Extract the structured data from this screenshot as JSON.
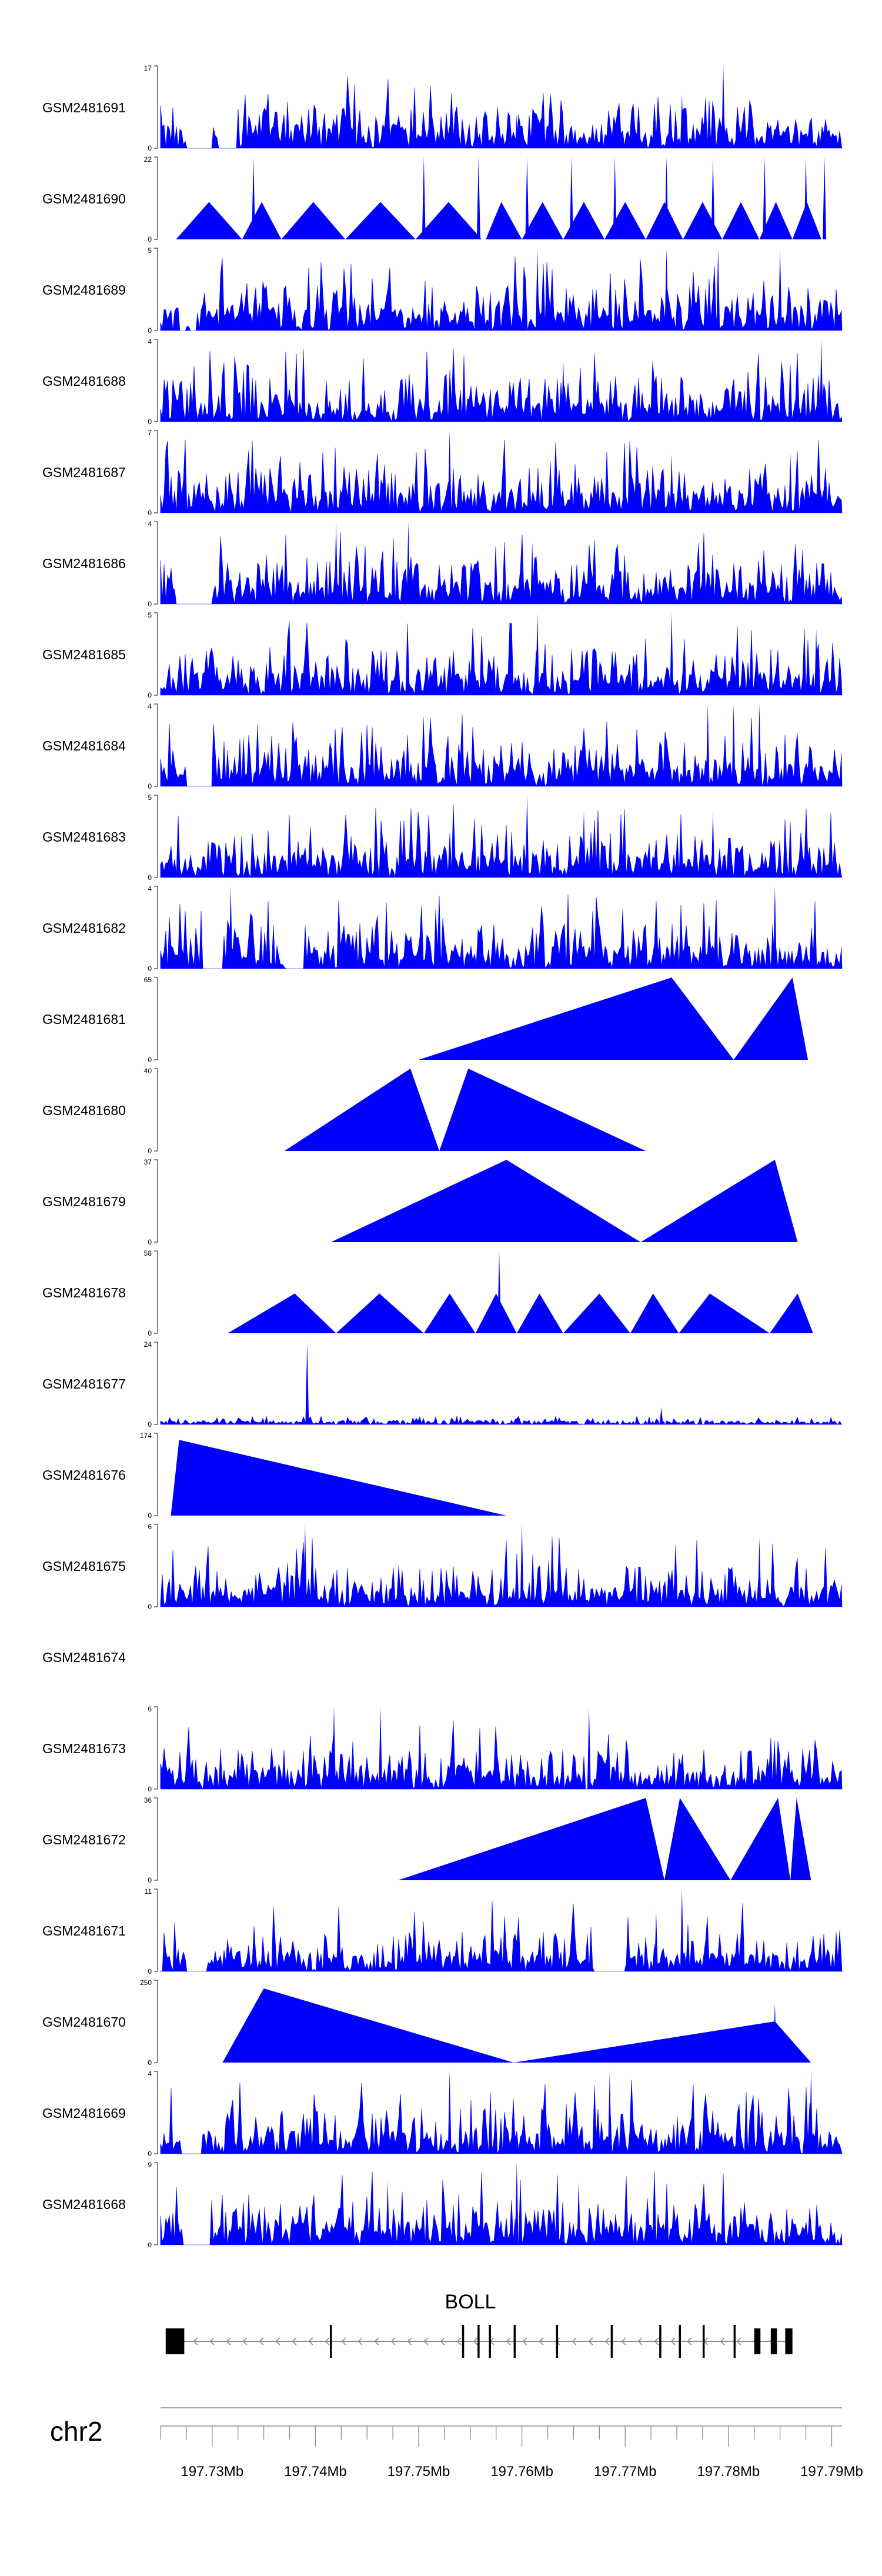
{
  "chart_data": {
    "type": "area",
    "title": "",
    "genome": "chr2",
    "xlim": [
      197.725,
      197.791
    ],
    "x_ticks": [
      {
        "value": 197.73,
        "label": "197.73Mb"
      },
      {
        "value": 197.74,
        "label": "197.74Mb"
      },
      {
        "value": 197.75,
        "label": "197.75Mb"
      },
      {
        "value": 197.76,
        "label": "197.76Mb"
      },
      {
        "value": 197.77,
        "label": "197.77Mb"
      },
      {
        "value": 197.78,
        "label": "197.78Mb"
      },
      {
        "value": 197.79,
        "label": "197.79Mb"
      }
    ],
    "gene": {
      "name": "BOLL",
      "start": 197.7255,
      "end": 197.7855,
      "exons": [
        [
          197.7255,
          197.7272
        ],
        [
          197.7268,
          197.7273
        ],
        [
          197.7414,
          197.7416
        ],
        [
          197.7542,
          197.7544
        ],
        [
          197.7557,
          197.7559
        ],
        [
          197.7568,
          197.757
        ],
        [
          197.7592,
          197.7594
        ],
        [
          197.7633,
          197.7635
        ],
        [
          197.7686,
          197.7688
        ],
        [
          197.7733,
          197.7735
        ],
        [
          197.7752,
          197.7754
        ],
        [
          197.7775,
          197.7777
        ],
        [
          197.7805,
          197.7807
        ],
        [
          197.7825,
          197.7831
        ],
        [
          197.7841,
          197.7847
        ],
        [
          197.7855,
          197.7862
        ]
      ]
    },
    "series": [
      {
        "name": "GSM2481691",
        "ymax": 17,
        "profile": "dense",
        "seed": 91,
        "gaps": [
          [
            197.7275,
            197.73
          ],
          [
            197.7305,
            197.7325
          ]
        ],
        "peaks": [
          [
            197.7795,
            17
          ],
          [
            197.7755,
            11
          ],
          [
            197.7595,
            7
          ]
        ]
      },
      {
        "name": "GSM2481690",
        "ymax": 22,
        "profile": "tri",
        "seed": 90,
        "gaps": [],
        "tri": [
          [
            197.7265,
            197.7297,
            197.7329,
            10
          ],
          [
            197.7329,
            197.7348,
            197.7367,
            10
          ],
          [
            197.7367,
            197.7398,
            197.7429,
            10
          ],
          [
            197.7429,
            197.7463,
            197.7497,
            10
          ],
          [
            197.7497,
            197.7529,
            197.7561,
            10
          ],
          [
            197.7565,
            197.758,
            197.76,
            10
          ],
          [
            197.76,
            197.762,
            197.764,
            10
          ],
          [
            197.764,
            197.766,
            197.768,
            10
          ],
          [
            197.768,
            197.77,
            197.772,
            10
          ],
          [
            197.772,
            197.7738,
            197.7756,
            10
          ],
          [
            197.7756,
            197.7775,
            197.7794,
            10
          ],
          [
            197.7794,
            197.7812,
            197.783,
            10
          ],
          [
            197.783,
            197.7846,
            197.7862,
            10
          ],
          [
            197.7862,
            197.7876,
            197.789,
            10
          ]
        ],
        "spikes": [
          [
            197.734,
            22
          ],
          [
            197.7505,
            22
          ],
          [
            197.7558,
            22
          ],
          [
            197.7605,
            22
          ],
          [
            197.7648,
            22
          ],
          [
            197.769,
            22
          ],
          [
            197.774,
            22
          ],
          [
            197.7785,
            22
          ],
          [
            197.7835,
            22
          ],
          [
            197.7875,
            22
          ],
          [
            197.7893,
            22
          ]
        ]
      },
      {
        "name": "GSM2481689",
        "ymax": 5,
        "profile": "dense",
        "seed": 89,
        "gaps": [
          [
            197.7268,
            197.7275
          ],
          [
            197.7278,
            197.7285
          ]
        ],
        "peaks": [
          [
            197.7615,
            5
          ],
          [
            197.774,
            5
          ],
          [
            197.779,
            5
          ],
          [
            197.785,
            5
          ]
        ]
      },
      {
        "name": "GSM2481688",
        "ymax": 4,
        "profile": "dense",
        "seed": 88,
        "gaps": [],
        "peaks": [
          [
            197.789,
            4
          ],
          [
            197.764,
            3
          ]
        ]
      },
      {
        "name": "GSM2481687",
        "ymax": 7,
        "profile": "dense",
        "seed": 87,
        "gaps": [],
        "peaks": [
          [
            197.753,
            7
          ],
          [
            197.7745,
            5
          ],
          [
            197.786,
            5
          ]
        ]
      },
      {
        "name": "GSM2481686",
        "ymax": 4,
        "profile": "dense",
        "seed": 86,
        "gaps": [
          [
            197.7265,
            197.73
          ]
        ],
        "peaks": [
          [
            197.742,
            4
          ],
          [
            197.749,
            4
          ],
          [
            197.761,
            3
          ]
        ]
      },
      {
        "name": "GSM2481685",
        "ymax": 5,
        "profile": "dense",
        "seed": 85,
        "gaps": [],
        "peaks": [
          [
            197.7615,
            5
          ],
          [
            197.7745,
            5
          ],
          [
            197.7885,
            4
          ]
        ]
      },
      {
        "name": "GSM2481684",
        "ymax": 4,
        "profile": "dense",
        "seed": 84,
        "gaps": [
          [
            197.7275,
            197.73
          ]
        ],
        "peaks": [
          [
            197.778,
            4
          ],
          [
            197.7805,
            4
          ],
          [
            197.783,
            4
          ]
        ]
      },
      {
        "name": "GSM2481683",
        "ymax": 5,
        "profile": "dense",
        "seed": 83,
        "gaps": [],
        "peaks": [
          [
            197.7605,
            5
          ],
          [
            197.766,
            4
          ],
          [
            197.7785,
            4
          ]
        ]
      },
      {
        "name": "GSM2481682",
        "ymax": 4,
        "profile": "dense",
        "seed": 82,
        "gaps": [
          [
            197.729,
            197.731
          ],
          [
            197.737,
            197.739
          ]
        ],
        "peaks": [
          [
            197.7845,
            4
          ],
          [
            197.7318,
            4
          ]
        ]
      },
      {
        "name": "GSM2481681",
        "ymax": 65,
        "profile": "tri",
        "seed": 81,
        "gaps": [],
        "tri": [
          [
            197.75,
            197.7745,
            197.7805,
            65
          ],
          [
            197.7805,
            197.7862,
            197.7877,
            65
          ]
        ],
        "spikes": []
      },
      {
        "name": "GSM2481680",
        "ymax": 40,
        "profile": "tri",
        "seed": 80,
        "gaps": [],
        "tri": [
          [
            197.737,
            197.7492,
            197.752,
            40
          ],
          [
            197.752,
            197.7548,
            197.772,
            40
          ]
        ],
        "spikes": [
          [
            197.7545,
            28
          ]
        ]
      },
      {
        "name": "GSM2481679",
        "ymax": 37,
        "profile": "tri",
        "seed": 79,
        "gaps": [],
        "tri": [
          [
            197.7415,
            197.7585,
            197.7715,
            37
          ],
          [
            197.7715,
            197.7845,
            197.7867,
            37
          ]
        ],
        "spikes": []
      },
      {
        "name": "GSM2481678",
        "ymax": 58,
        "profile": "tri",
        "seed": 78,
        "gaps": [],
        "tri": [
          [
            197.7315,
            197.738,
            197.742,
            28
          ],
          [
            197.742,
            197.7462,
            197.7505,
            28
          ],
          [
            197.7505,
            197.753,
            197.7555,
            28
          ],
          [
            197.7555,
            197.7575,
            197.7595,
            28
          ],
          [
            197.7595,
            197.7617,
            197.764,
            28
          ],
          [
            197.764,
            197.7675,
            197.7705,
            28
          ],
          [
            197.7705,
            197.7727,
            197.7752,
            28
          ],
          [
            197.7752,
            197.7782,
            197.784,
            28
          ],
          [
            197.784,
            197.7867,
            197.7882,
            28
          ]
        ],
        "spikes": [
          [
            197.7578,
            58
          ]
        ]
      },
      {
        "name": "GSM2481677",
        "ymax": 24,
        "profile": "low",
        "seed": 77,
        "gaps": [],
        "peaks": [
          [
            197.7392,
            24
          ],
          [
            197.7735,
            5
          ]
        ]
      },
      {
        "name": "GSM2481676",
        "ymax": 174,
        "profile": "tri",
        "seed": 76,
        "gaps": [],
        "tri": [
          [
            197.726,
            197.7268,
            197.7585,
            160
          ]
        ],
        "spikes": []
      },
      {
        "name": "GSM2481675",
        "ymax": 6,
        "profile": "sparse",
        "seed": 75,
        "gaps": [],
        "peaks": [
          [
            197.739,
            6
          ],
          [
            197.76,
            6
          ],
          [
            197.783,
            5
          ]
        ]
      },
      {
        "name": "GSM2481674",
        "ymax": null,
        "profile": "empty",
        "seed": 74,
        "gaps": []
      },
      {
        "name": "GSM2481673",
        "ymax": 6,
        "profile": "sparse",
        "seed": 73,
        "gaps": [],
        "peaks": [
          [
            197.7418,
            6
          ],
          [
            197.7463,
            6
          ],
          [
            197.7665,
            6
          ]
        ]
      },
      {
        "name": "GSM2481672",
        "ymax": 36,
        "profile": "tri",
        "seed": 72,
        "gaps": [],
        "tri": [
          [
            197.748,
            197.772,
            197.7738,
            36
          ],
          [
            197.7738,
            197.7753,
            197.7802,
            36
          ],
          [
            197.7802,
            197.7848,
            197.786,
            36
          ],
          [
            197.786,
            197.7866,
            197.788,
            36
          ]
        ],
        "spikes": []
      },
      {
        "name": "GSM2481671",
        "ymax": 11,
        "profile": "sparse",
        "seed": 71,
        "gaps": [
          [
            197.7275,
            197.7295
          ],
          [
            197.767,
            197.77
          ]
        ],
        "peaks": [
          [
            197.7755,
            11
          ],
          [
            197.773,
            8
          ]
        ]
      },
      {
        "name": "GSM2481670",
        "ymax": 250,
        "profile": "tri",
        "seed": 70,
        "gaps": [],
        "tri": [
          [
            197.731,
            197.735,
            197.7592,
            225
          ],
          [
            197.7592,
            197.7845,
            197.788,
            125
          ]
        ],
        "spikes": [
          [
            197.7845,
            180
          ]
        ]
      },
      {
        "name": "GSM2481669",
        "ymax": 4,
        "profile": "dense",
        "seed": 69,
        "gaps": [
          [
            197.727,
            197.729
          ]
        ],
        "peaks": [
          [
            197.7685,
            4
          ],
          [
            197.753,
            4
          ],
          [
            197.788,
            4
          ]
        ]
      },
      {
        "name": "GSM2481668",
        "ymax": 9,
        "profile": "dense",
        "seed": 68,
        "gaps": [
          [
            197.7272,
            197.7298
          ]
        ],
        "peaks": [
          [
            197.7595,
            9
          ],
          [
            197.747,
            7
          ],
          [
            197.7655,
            7
          ]
        ]
      }
    ]
  }
}
